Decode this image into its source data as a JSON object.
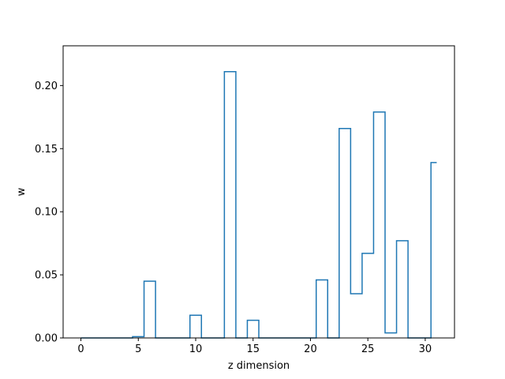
{
  "chart_data": {
    "type": "line",
    "drawstyle": "steps-mid",
    "xlabel": "z dimension",
    "ylabel": "w",
    "xlim": [
      -1.55,
      32.55
    ],
    "ylim": [
      0.0,
      0.2315
    ],
    "xticks": [
      0,
      5,
      10,
      15,
      20,
      25,
      30
    ],
    "xtick_labels": [
      "0",
      "5",
      "10",
      "15",
      "20",
      "25",
      "30"
    ],
    "yticks": [
      0.0,
      0.05,
      0.1,
      0.15,
      0.2
    ],
    "ytick_labels": [
      "0.00",
      "0.05",
      "0.10",
      "0.15",
      "0.20"
    ],
    "grid": false,
    "series": [
      {
        "color": "#1f77b4",
        "x": [
          0,
          1,
          2,
          3,
          4,
          5,
          6,
          7,
          8,
          9,
          10,
          11,
          12,
          13,
          14,
          15,
          16,
          17,
          18,
          19,
          20,
          21,
          22,
          23,
          24,
          25,
          26,
          27,
          28,
          29,
          30,
          31
        ],
        "y": [
          0.0,
          0.0,
          0.0,
          0.0,
          0.0,
          0.001,
          0.045,
          0.0,
          0.0,
          0.0,
          0.018,
          0.0,
          0.0,
          0.211,
          0.0,
          0.014,
          0.0,
          0.0,
          0.0,
          0.0,
          0.0,
          0.046,
          0.0,
          0.166,
          0.035,
          0.067,
          0.179,
          0.004,
          0.077,
          0.0,
          0.0,
          0.139
        ]
      }
    ]
  }
}
